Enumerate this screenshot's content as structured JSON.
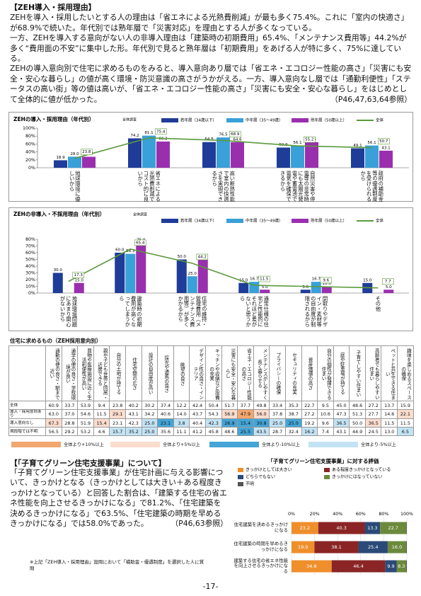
{
  "header": {
    "title": "【ZEH導入・採用理由】",
    "paragraphs": [
      "ZEHを導入・採用したいとする人の理由は「省エネによる光熱費削減」が最も多く75.4%。これに「室内の快適さ」が68.9%で続いた。年代別では熟年層で「災害対応」を理由とする人が多くなっている。",
      "一方、ZEHを導入する意向がない人の非導入理由は「建築時の初期費用」65.4%、「メンテナンス費用等」44.2%が多く“費用面の不安”に集中した形。年代別で見ると熟年層は「初期費用」をあげる人が特に多く、75%に達している。",
      "ZEHの導入意向別で住宅に求めるものをみると、導入意向あり層では「省エネ・エコロジー性能の高さ」「災害にも安全・安心な暮らし」の値が高く環境・防災意識の高さがうかがえる。一方、導入意向なし層では「通勤利便性」「ステータスの高い街」等の値は高いが、「省エネ・エコロジー性能の高さ」「災害にも安全・安心な暮らし」をはじめとして全体的に値が低かった。"
    ],
    "reference": "（P46,47,63,64参照）"
  },
  "chart_data": [
    {
      "type": "bar",
      "title": "ZEHの導入・採用理由（年代別）",
      "subtitle": "全体調査",
      "categories": [
        "地球環境に優しいから",
        "省エネによる光熱費削減でコスト的に良いから",
        "高い断熱性能で室内の快適さを実現できるから",
        "自然災害や停電等の非常時にも太陽光発電や蓄電池で電気を確保できるから",
        "政府の補助金等の優遇制度を受けられるから"
      ],
      "series": [
        {
          "name": "若年層（34歳以下）",
          "color": "#1f3c98",
          "values": [
            18.9,
            74.2,
            64.8,
            50.9,
            49.1
          ],
          "value_labels": [
            "18.9",
            "74.2",
            "64.8",
            "50.9",
            "49.1"
          ]
        },
        {
          "name": "中年層（35～49歳）",
          "color": "#3aa0d8",
          "values": [
            28.0,
            81.1,
            76.5,
            56.1,
            56.1
          ],
          "value_labels": [
            "28.0",
            "81.1",
            "76.5",
            "56.1",
            "56.1"
          ]
        },
        {
          "name": "熟年層（50歳以上）",
          "color": "#9a2fae",
          "values": [
            27.7,
            66.2,
            64.6,
            64.6,
            43.1
          ],
          "value_labels": [
            "27.7",
            "66.2",
            "64.6",
            "64.6",
            "43.1"
          ]
        },
        {
          "name": "全体",
          "type": "line",
          "color": "#5b9a3a",
          "values": [
            23.8,
            75.4,
            68.9,
            55.2,
            50.7
          ],
          "value_labels": [
            "23.8",
            "75.4",
            "68.9",
            "55.2",
            "50.7"
          ]
        }
      ],
      "ylim": [
        0,
        100
      ],
      "yticks": [
        {
          "value": 0,
          "label": "0%"
        },
        {
          "value": 20,
          "label": "20%"
        },
        {
          "value": 40,
          "label": "40%"
        },
        {
          "value": 60,
          "label": "60%"
        },
        {
          "value": 80,
          "label": "80%"
        },
        {
          "value": 100,
          "label": "100%"
        }
      ]
    },
    {
      "type": "bar",
      "title": "ZEHの非導入・不採用理由（年代別）",
      "subtitle": "全体調査",
      "categories": [
        "地球環境問題にあまり関心がないから",
        "建築時の初期費用が高くなってしまうから",
        "住宅の維持・管理費用（メンテナンス費用等）が多くかかるから",
        "通常仕様の住宅と性能的にそれほど差がないと思うから",
        "間取りやデザイン・素材等の自由度が制限されるから",
        "その他"
      ],
      "series": [
        {
          "name": "若年層（34歳以下）",
          "color": "#1f3c98",
          "values": [
            30.0,
            60.0,
            50.0,
            15.0,
            5.0,
            15.0
          ],
          "value_labels": [
            "30.0",
            "60.0",
            "50.0",
            "15.0",
            "5.0",
            "15.0"
          ]
        },
        {
          "name": "中年層（35～49歳）",
          "color": "#3aa0d8",
          "values": [
            null,
            58.3,
            25.0,
            16.7,
            16.7,
            null
          ],
          "value_labels": [
            null,
            "58.3",
            "25.0",
            "16.7",
            "16.7",
            null
          ]
        },
        {
          "name": "熟年層（50歳以上）",
          "color": "#9a2fae",
          "values": [
            15.0,
            75.0,
            50.0,
            5.0,
            10.0,
            5.0
          ],
          "value_labels": [
            "15.0",
            "75.0",
            "50.0",
            "5.0",
            "10.0",
            "5.0"
          ]
        },
        {
          "name": "全体",
          "type": "line",
          "color": "#5b9a3a",
          "values": [
            17.3,
            65.4,
            44.2,
            11.5,
            9.6,
            7.7
          ],
          "value_labels": [
            "17.3",
            "65.4",
            "44.2",
            "11.5",
            "9.6",
            "7.7"
          ]
        }
      ],
      "ylim": [
        0,
        80
      ],
      "yticks": [
        {
          "value": 0,
          "label": "0%"
        },
        {
          "value": 10,
          "label": "10%"
        },
        {
          "value": 20,
          "label": "20%"
        },
        {
          "value": 30,
          "label": "30%"
        },
        {
          "value": 40,
          "label": "40%"
        },
        {
          "value": 50,
          "label": "50%"
        },
        {
          "value": 60,
          "label": "60%"
        },
        {
          "value": 70,
          "label": "70%"
        },
        {
          "value": 80,
          "label": "80%"
        }
      ]
    },
    {
      "type": "stacked_bar",
      "title": "「子育てグリーン住宅支援事業」に対する評価",
      "categories": [
        "住宅建築を決めるきっかけになる",
        "住宅建築の時期を早めるきっかけになる",
        "建築する住宅の省エネ性能を向上させるきっかけになる"
      ],
      "series": [
        {
          "name": "きっかけとしては大きい",
          "color": "#ef8f2c",
          "values": [
            23.2,
            19.9,
            34.8
          ],
          "value_labels": [
            "23.2",
            "19.9",
            "34.8"
          ]
        },
        {
          "name": "ある程度きっかけとなっている",
          "color": "#8b2525",
          "values": [
            40.3,
            38.1,
            46.4
          ],
          "value_labels": [
            "40.3",
            "38.1",
            "46.4"
          ]
        },
        {
          "name": "どちらでもない",
          "color": "#2b4a78",
          "values": [
            13.3,
            25.4,
            9.9
          ],
          "value_labels": [
            "13.3",
            "25.4",
            "9.9"
          ]
        },
        {
          "name": "きっかけにはなっていない",
          "color": "#6b8a3c",
          "values": [
            22.7,
            16.0,
            8.3
          ],
          "value_labels": [
            "22.7",
            "16.0",
            "8.3"
          ]
        },
        {
          "name": "不明",
          "color": "#555555",
          "values": [
            0.5,
            0.6,
            0.6
          ]
        }
      ],
      "xlim": [
        0,
        100
      ],
      "xticks": [
        {
          "value": 0,
          "label": "0%"
        },
        {
          "value": 20,
          "label": "20%"
        },
        {
          "value": 40,
          "label": "40%"
        },
        {
          "value": 60,
          "label": "60%"
        },
        {
          "value": 80,
          "label": "80%"
        },
        {
          "value": 100,
          "label": "100%"
        }
      ]
    }
  ],
  "table": {
    "title": "住宅に求めるもの（ZEH採用意向別）",
    "columns": [
      "通勤の便の良さ・駅まで近い",
      "通学の便の良さ・学校環境が良い",
      "買物や医療施設に近く生活利便性が高い",
      "親や子ども世帯と同居・近居できる",
      "自分の土地が持てる",
      "住宅空間の広さ",
      "設計の自由度が高い",
      "採光や通風の良さ",
      "眺望の良さ",
      "デザイン性の良さ・インテリア",
      "キッチンや収納など設備の充実",
      "災害にも安全・安心な暮らし",
      "省エネ・エコロジー性能の高さ",
      "メンテナンスがしやすく長く暮らせる",
      "プライバシーの確保",
      "セキュリティの充実",
      "資産価値の高さ",
      "自分の個性が発揮できる住まい",
      "庭や駐車場が持てる",
      "子育てしやすい住まい",
      "高齢者でも暮らしやすい住まい",
      "ペットと共生できる住まい",
      "趣味を楽しめるスペースの確保"
    ],
    "rows": [
      {
        "label": "全体",
        "cells": [
          "60.9",
          "33.7",
          "53.9",
          "9.4",
          "23.8",
          "40.2",
          "30.2",
          "37.4",
          "12.2",
          "42.4",
          "50.4",
          "51.7",
          "37.7",
          "49.8",
          "33.4",
          "35.3",
          "22.7",
          "9.5",
          "45.0",
          "48.6",
          "27.2",
          "13.7",
          "15.9"
        ]
      },
      {
        "label": "導入・採用意向あり",
        "cells": [
          "63.0",
          "37.0",
          "54.6",
          "11.5",
          "29.1",
          "43.1",
          "34.2",
          "40.6",
          "14.0",
          "43.7",
          "54.3",
          "56.9",
          "47.9",
          "56.0",
          "37.8",
          "38.7",
          "27.2",
          "10.6",
          "47.3",
          "51.3",
          "27.7",
          "14.6",
          "22.1"
        ]
      },
      {
        "label": "導入意向なし",
        "cells": [
          "67.3",
          "28.8",
          "51.9",
          "15.4",
          "23.1",
          "42.3",
          "25.0",
          "23.1",
          "3.8",
          "40.4",
          "42.3",
          "26.9",
          "15.4",
          "30.8",
          "25.0",
          "25.0",
          "19.2",
          "9.6",
          "36.5",
          "50.0",
          "36.5",
          "11.5",
          "11.5"
        ]
      },
      {
        "label": "現段階では不明",
        "cells": [
          "56.5",
          "29.2",
          "53.2",
          "4.6",
          "15.7",
          "35.2",
          "25.0",
          "35.6",
          "11.1",
          "41.2",
          "45.8",
          "48.6",
          "25.5",
          "43.5",
          "28.7",
          "32.4",
          "16.2",
          "7.4",
          "43.1",
          "44.9",
          "24.5",
          "13.0",
          "6.5"
        ]
      }
    ],
    "legend": [
      {
        "label": "全体より+10%以上",
        "color": "#f2a66f",
        "threshold": 10
      },
      {
        "label": "全体より+5%以上",
        "color": "#fbdccd",
        "threshold": 5
      },
      {
        "label": "全体より-10%以上",
        "color": "#44a5d6",
        "threshold": -10
      },
      {
        "label": "全体より-5%以上",
        "color": "#c3e3f4",
        "threshold": -5
      }
    ]
  },
  "section2": {
    "title": "【「子育てグリーン住宅支援事業」について】",
    "paragraph": "「子育てグリーン住宅支援事業」が住宅計画に与える影響について、きっかけとなる（きっかけとしては大きい＋ある程度きっかけとなっている）と回答した割合は、「建築する住宅の省エネ性能を向上させるきっかけになる」で81.2%、「住宅建築を決めるきっかけになる」で63.5%、「住宅建築の時期を早めるきっかけになる」では58.0%であった。",
    "reference": "（P46,63参照）",
    "footnote": "※上記「ZEH導入・採用理由」設問において「補助金・優遇制度」を選択した人に質問"
  },
  "page_number": "-17-"
}
